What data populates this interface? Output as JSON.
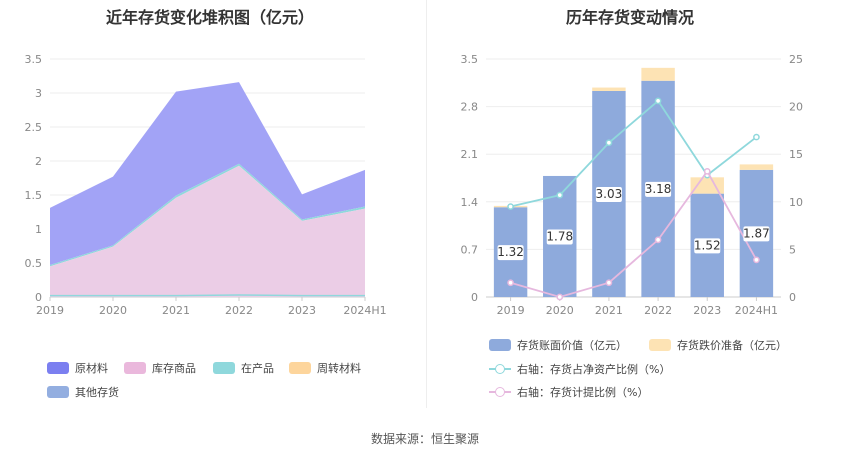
{
  "left": {
    "title": "近年存货变化堆积图（亿元）",
    "legend": [
      "原材料",
      "库存商品",
      "在产品",
      "周转材料",
      "其他存货"
    ],
    "colors": {
      "原材料": "#7b7ff0",
      "库存商品": "#eab8dc",
      "在产品": "#8fd8dc",
      "周转材料": "#fdd59c",
      "其他存货": "#93aee0",
      "area_top": "#a2a3f6",
      "area_bottom": "#ebcde6"
    }
  },
  "right": {
    "title": "历年存货变动情况",
    "legend": [
      "存货账面价值（亿元）",
      "存货跌价准备（亿元）",
      "右轴：存货占净资产比例（%）",
      "右轴：存货计提比例（%）"
    ],
    "colors": {
      "bar": "#8eaadc",
      "bar_cap": "#fde3b4",
      "line1": "#8fd8dc",
      "line2": "#e6b8de"
    }
  },
  "source": "数据来源：恒生聚源",
  "chart_data": [
    {
      "type": "area",
      "title": "近年存货变化堆积图（亿元）",
      "categories": [
        "2019",
        "2020",
        "2021",
        "2022",
        "2023",
        "2024H1"
      ],
      "ylim": [
        0,
        3.5
      ],
      "yticks": [
        "0",
        "0.5",
        "1",
        "1.5",
        "2",
        "2.5",
        "3",
        "3.5"
      ],
      "stacked": true,
      "series": [
        {
          "name": "库存商品",
          "values": [
            0.45,
            0.74,
            1.46,
            1.93,
            1.12,
            1.3
          ]
        },
        {
          "name": "在产品",
          "values": [
            0.02,
            0.02,
            0.03,
            0.03,
            0.02,
            0.03
          ]
        },
        {
          "name": "原材料",
          "values": [
            0.84,
            1.01,
            1.53,
            1.2,
            0.37,
            0.54
          ]
        }
      ],
      "totals": [
        1.31,
        1.77,
        3.02,
        3.16,
        1.51,
        1.87
      ]
    },
    {
      "type": "bar",
      "title": "历年存货变动情况",
      "categories": [
        "2019",
        "2020",
        "2021",
        "2022",
        "2023",
        "2024H1"
      ],
      "ylim": [
        0,
        3.5
      ],
      "yticks": [
        "0",
        "0.7",
        "1.4",
        "2.1",
        "2.8",
        "3.5"
      ],
      "y2lim": [
        0,
        25
      ],
      "y2ticks": [
        "0",
        "5",
        "10",
        "15",
        "20",
        "25"
      ],
      "series": [
        {
          "name": "存货账面价值（亿元）",
          "values": [
            1.32,
            1.78,
            3.03,
            3.18,
            1.52,
            1.87
          ]
        },
        {
          "name": "存货跌价准备（亿元）",
          "values": [
            0.02,
            0.0,
            0.05,
            0.19,
            0.24,
            0.08
          ]
        },
        {
          "name": "右轴：存货占净资产比例（%）",
          "axis": "right",
          "values": [
            9.5,
            10.7,
            16.2,
            20.6,
            12.8,
            16.8
          ]
        },
        {
          "name": "右轴：存货计提比例（%）",
          "axis": "right",
          "values": [
            1.5,
            0.0,
            1.5,
            6.0,
            13.2,
            3.9
          ]
        }
      ]
    }
  ]
}
